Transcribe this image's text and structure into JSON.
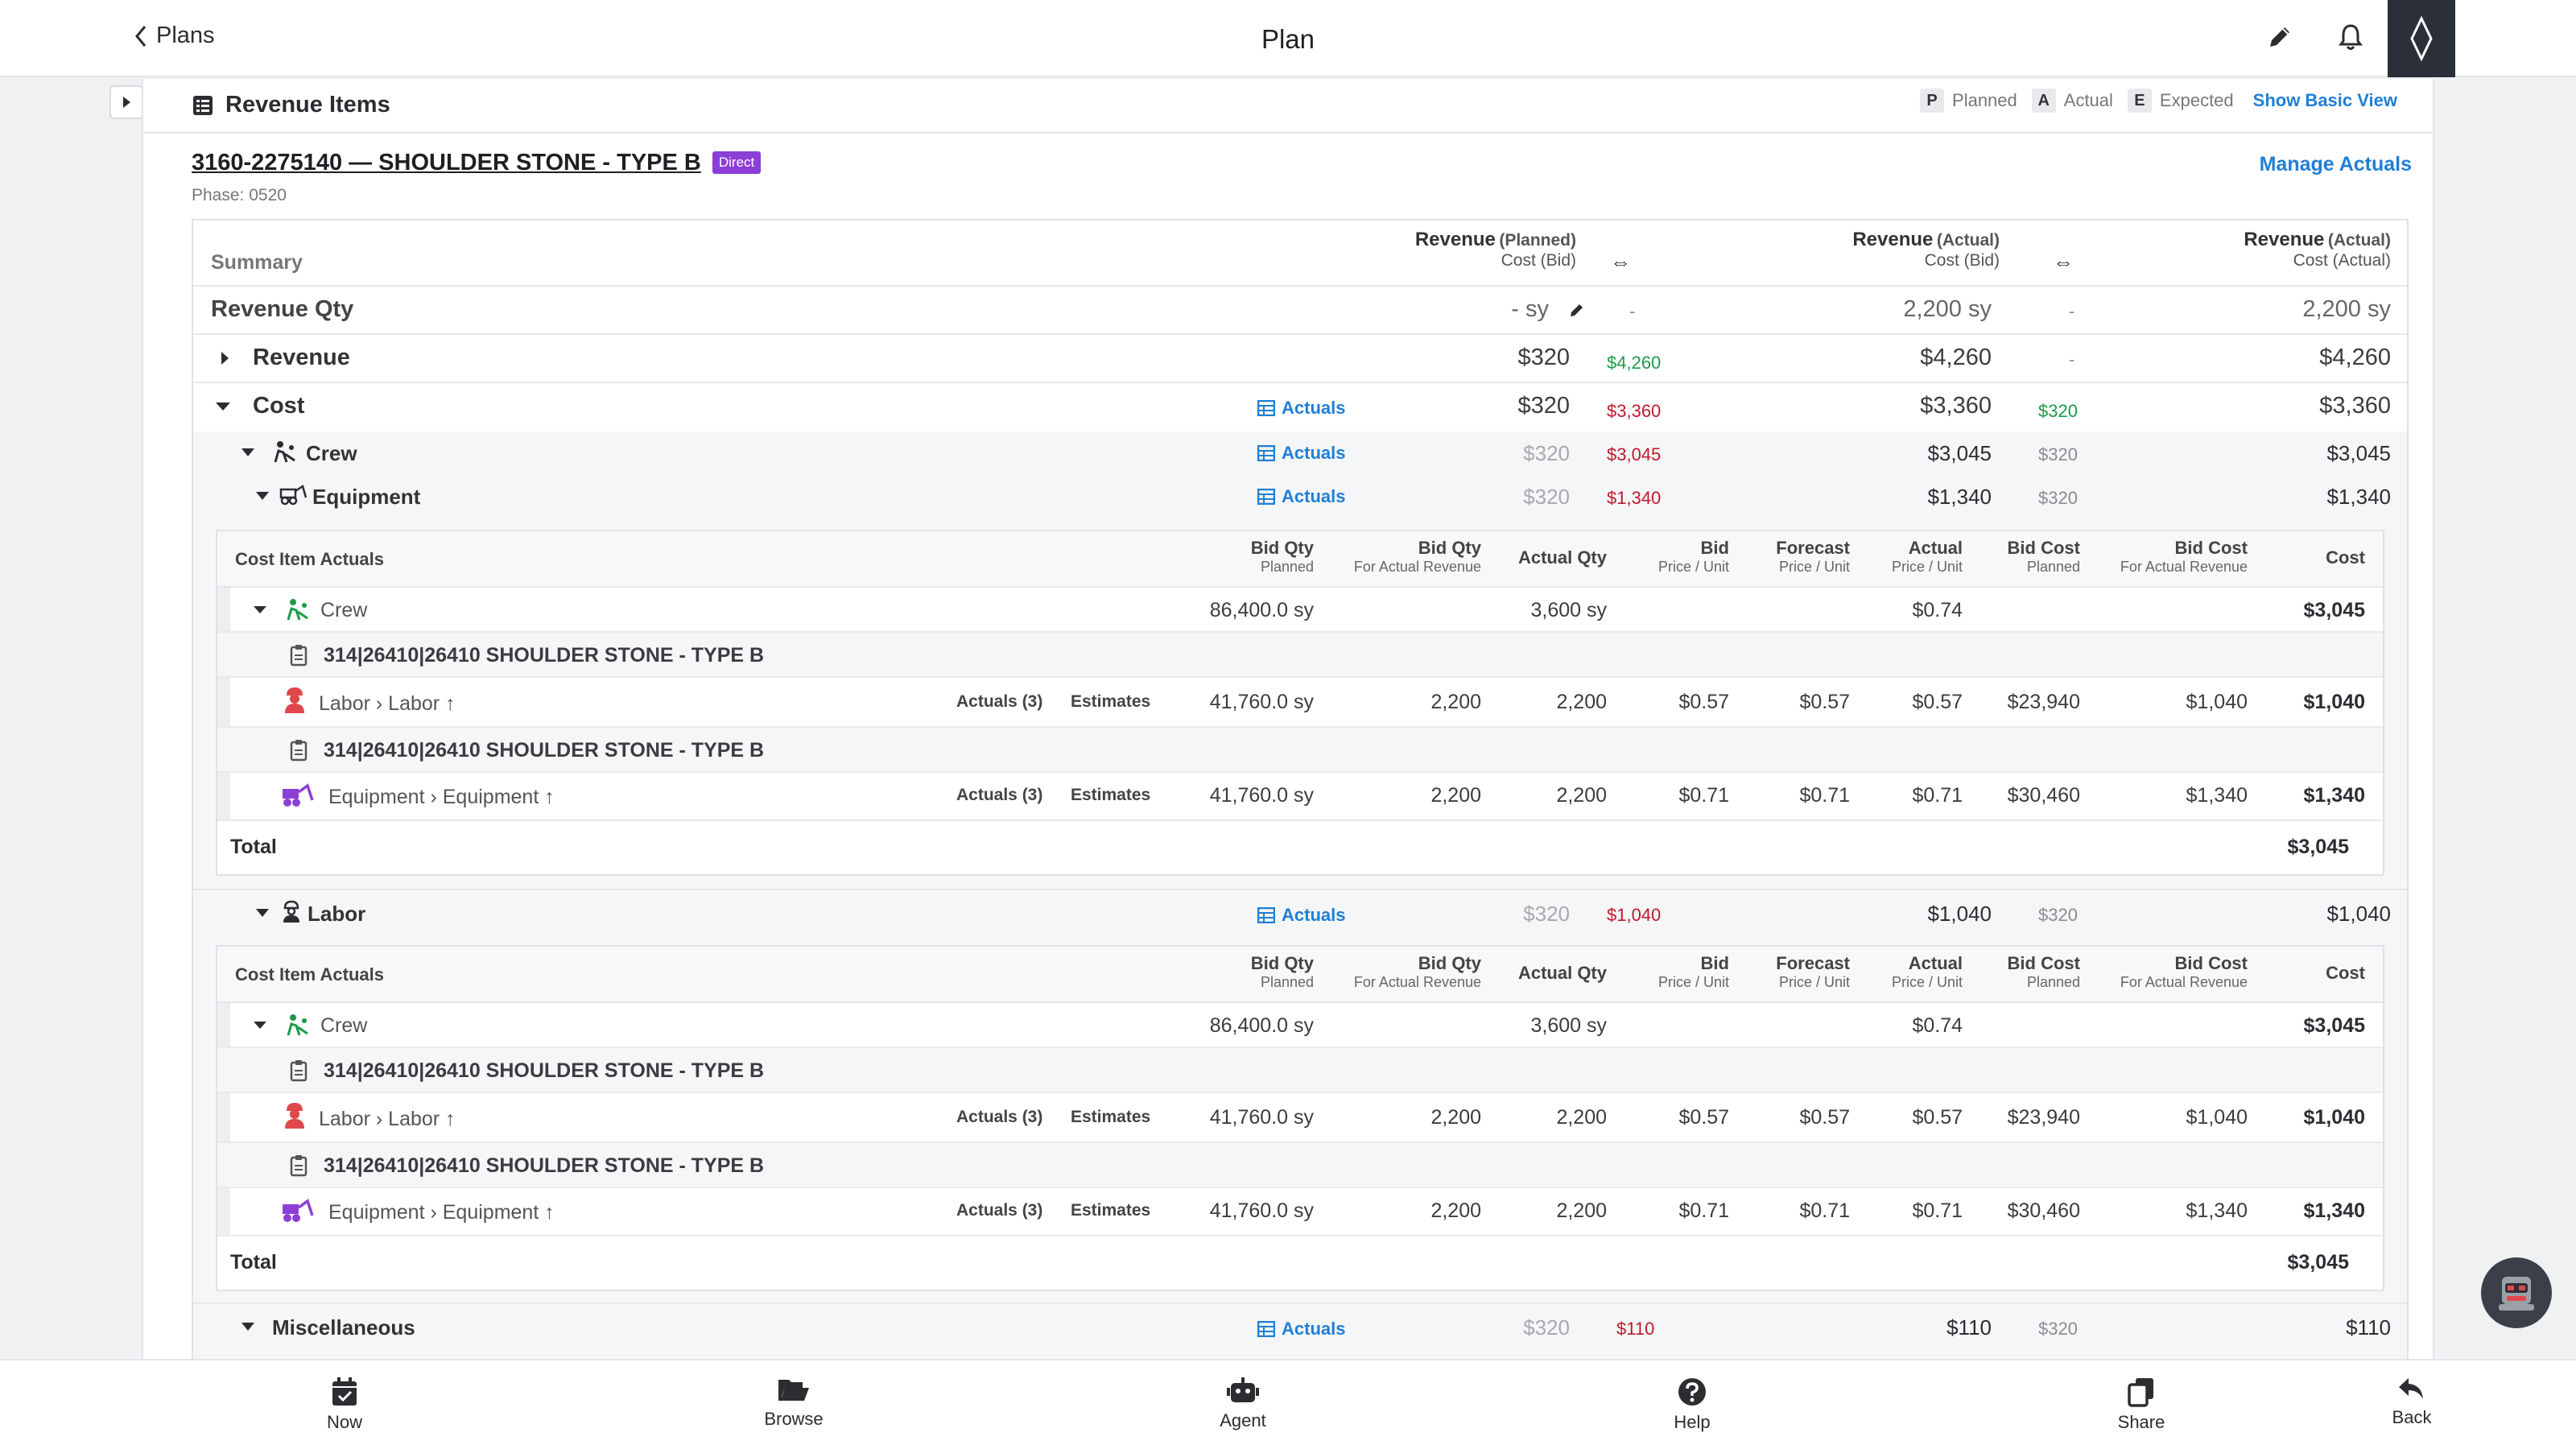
{
  "topbar": {
    "back_label": "Plans",
    "title": "Plan"
  },
  "section": {
    "title": "Revenue Items",
    "legend": [
      {
        "key": "P",
        "label": "Planned"
      },
      {
        "key": "A",
        "label": "Actual"
      },
      {
        "key": "E",
        "label": "Expected"
      }
    ],
    "show_basic_view": "Show Basic View"
  },
  "item": {
    "title": "3160-2275140 — SHOULDER STONE - TYPE B",
    "badge": "Direct",
    "phase": "Phase: 0520",
    "manage_actuals": "Manage Actuals"
  },
  "summary": {
    "label": "Summary",
    "columns": [
      {
        "main": "Revenue",
        "qual": "(Planned)",
        "sub": "Cost (Bid)"
      },
      {
        "main": "Revenue",
        "qual": "(Actual)",
        "sub": "Cost (Bid)"
      },
      {
        "main": "Revenue",
        "qual": "(Actual)",
        "sub": "Cost (Actual)"
      }
    ],
    "swap_glyph": "⇔",
    "actuals_label": "Actuals",
    "rows": {
      "qty": {
        "label": "Revenue Qty",
        "c1": "- sy",
        "d1": "-",
        "c2": "2,200 sy",
        "d2": "-",
        "c3": "2,200 sy"
      },
      "revenue": {
        "label": "Revenue",
        "c1": "$320",
        "d1": "$4,260",
        "c2": "$4,260",
        "d2": "-",
        "c3": "$4,260"
      },
      "cost": {
        "label": "Cost",
        "c1": "$320",
        "d1": "$3,360",
        "c2": "$3,360",
        "d2": "$320",
        "c3": "$3,360"
      },
      "crew": {
        "label": "Crew",
        "c1": "$320",
        "d1": "$3,045",
        "c2": "$3,045",
        "d2": "$320",
        "c3": "$3,045"
      },
      "equipment": {
        "label": "Equipment",
        "c1": "$320",
        "d1": "$1,340",
        "c2": "$1,340",
        "d2": "$320",
        "c3": "$1,340"
      },
      "labor": {
        "label": "Labor",
        "c1": "$320",
        "d1": "$1,040",
        "c2": "$1,040",
        "d2": "$320",
        "c3": "$1,040"
      },
      "misc": {
        "label": "Miscellaneous",
        "c1": "$320",
        "d1": "$110",
        "c2": "$110",
        "d2": "$320",
        "c3": "$110"
      }
    }
  },
  "cost_actuals": {
    "title": "Cost Item Actuals",
    "headers": [
      {
        "h1": "Bid Qty",
        "h2": "Planned"
      },
      {
        "h1": "Bid Qty",
        "h2": "For Actual Revenue"
      },
      {
        "h1": "Actual Qty",
        "h2": ""
      },
      {
        "h1": "Bid",
        "h2": "Price / Unit"
      },
      {
        "h1": "Forecast",
        "h2": "Price / Unit"
      },
      {
        "h1": "Actual",
        "h2": "Price / Unit"
      },
      {
        "h1": "Bid Cost",
        "h2": "Planned"
      },
      {
        "h1": "Bid Cost",
        "h2": "For Actual Revenue"
      },
      {
        "h1": "Cost",
        "h2": ""
      }
    ],
    "crew_row": {
      "label": "Crew",
      "bid_qty": "86,400.0 sy",
      "actual_qty": "3,600 sy",
      "actual_price": "$0.74",
      "cost": "$3,045"
    },
    "item_code": "314|26410|26410 SHOULDER STONE - TYPE B",
    "labor_row": {
      "label": "Labor",
      "sub": "Labor",
      "actuals": "Actuals (3)",
      "estimates": "Estimates",
      "bid_qty": "41,760.0 sy",
      "bid_qty_rev": "2,200",
      "actual_qty": "2,200",
      "bid": "$0.57",
      "forecast": "$0.57",
      "actual": "$0.57",
      "bid_cost": "$23,940",
      "bid_cost_rev": "$1,040",
      "cost": "$1,040"
    },
    "equipment_row": {
      "label": "Equipment",
      "sub": "Equipment",
      "actuals": "Actuals (3)",
      "estimates": "Estimates",
      "bid_qty": "41,760.0 sy",
      "bid_qty_rev": "2,200",
      "actual_qty": "2,200",
      "bid": "$0.71",
      "forecast": "$0.71",
      "actual": "$0.71",
      "bid_cost": "$30,460",
      "bid_cost_rev": "$1,340",
      "cost": "$1,340"
    },
    "total_label": "Total",
    "total_value": "$3,045"
  },
  "bottom_nav": [
    {
      "label": "Now",
      "icon": "calendar-check-icon"
    },
    {
      "label": "Browse",
      "icon": "folder-open-icon"
    },
    {
      "label": "Agent",
      "icon": "robot-icon"
    },
    {
      "label": "Help",
      "icon": "help-circle-icon"
    },
    {
      "label": "Share",
      "icon": "copy-icon"
    },
    {
      "label": "Back",
      "icon": "reply-icon"
    }
  ]
}
